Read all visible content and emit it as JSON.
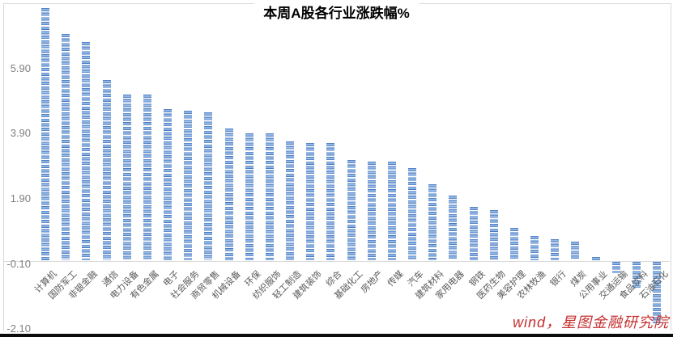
{
  "chart_data": {
    "type": "bar",
    "title": "本周A股各行业涨跌幅%",
    "categories": [
      "计算机",
      "国防军工",
      "非银金融",
      "通信",
      "电力设备",
      "有色金属",
      "电子",
      "社会服务",
      "商贸零售",
      "机械设备",
      "环保",
      "纺织服饰",
      "轻工制造",
      "建筑装饰",
      "综合",
      "基础化工",
      "房地产",
      "传媒",
      "汽车",
      "建筑材料",
      "家用电器",
      "钢铁",
      "医药生物",
      "美容护理",
      "农林牧渔",
      "银行",
      "煤炭",
      "公用事业",
      "交通运输",
      "食品饮料",
      "石油石化"
    ],
    "values": [
      7.75,
      6.95,
      6.7,
      5.55,
      5.1,
      5.1,
      4.65,
      4.6,
      4.55,
      4.05,
      3.9,
      3.9,
      3.65,
      3.6,
      3.6,
      3.1,
      3.05,
      3.05,
      2.85,
      2.35,
      2.0,
      1.65,
      1.55,
      1.0,
      0.75,
      0.65,
      0.58,
      0.1,
      -0.35,
      -0.8,
      -1.9
    ],
    "xlabel": "",
    "ylabel": "",
    "ylim": [
      -2.1,
      7.9
    ],
    "yticks": [
      5.9,
      3.9,
      1.9,
      -0.1,
      -2.1
    ],
    "ytick_labels": [
      "5.90",
      "3.90",
      "1.90",
      "-0.10",
      "-2.10"
    ],
    "grid": false,
    "legend_position": "none",
    "bar_color": "#4472C4",
    "bar_stripe_light": "#AECDF0",
    "axis_color": "#D9D9D9",
    "ytick_label_color": "#808080",
    "category_label_color": "#595959",
    "title_color": "#000000",
    "watermark": "wind，星图金融研究院",
    "watermark_color": "#C53030"
  }
}
